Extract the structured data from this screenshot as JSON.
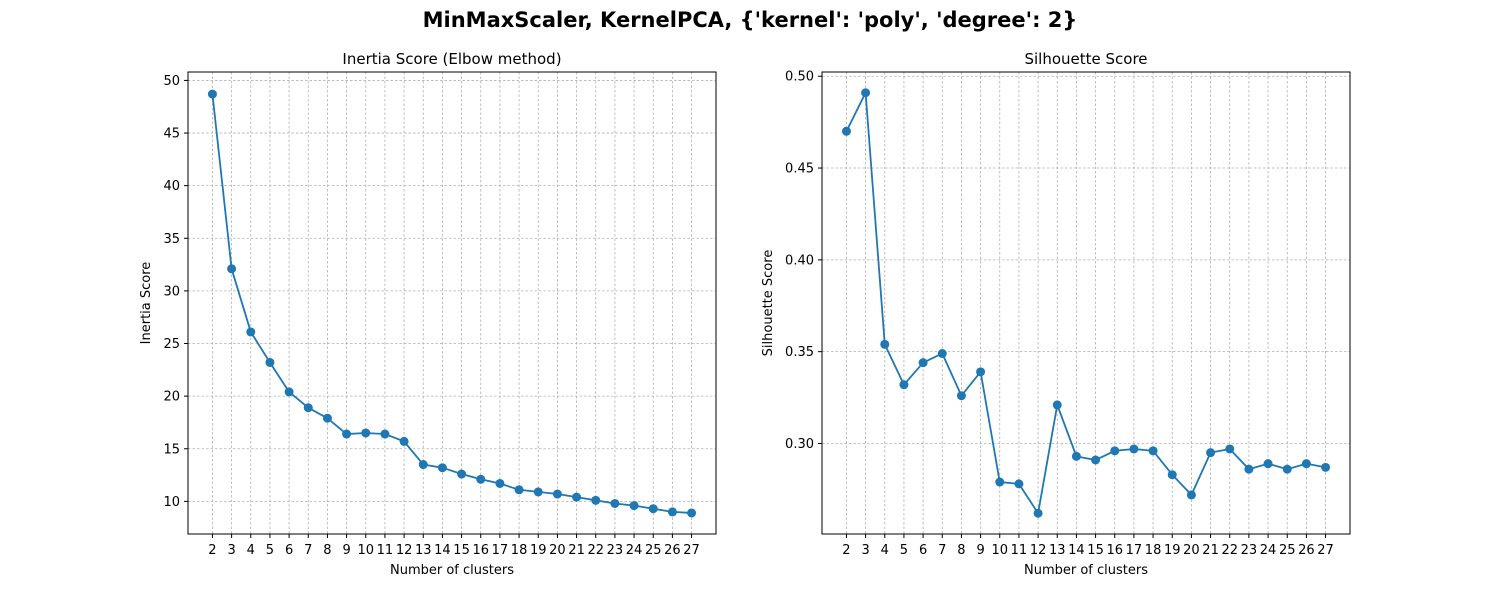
{
  "figure": {
    "suptitle": "MinMaxScaler, KernelPCA, {'kernel': 'poly', 'degree': 2}"
  },
  "style": {
    "line_color": "#1f77b4",
    "grid_color": "#b0b0b0"
  },
  "chart_data": [
    {
      "type": "line",
      "title": "Inertia Score (Elbow method)",
      "xlabel": "Number of clusters",
      "ylabel": "Inertia Score",
      "grid": true,
      "marker": "circle",
      "x": [
        2,
        3,
        4,
        5,
        6,
        7,
        8,
        9,
        10,
        11,
        12,
        13,
        14,
        15,
        16,
        17,
        18,
        19,
        20,
        21,
        22,
        23,
        24,
        25,
        26,
        27
      ],
      "y": [
        48.7,
        32.1,
        26.1,
        23.2,
        20.4,
        18.9,
        17.9,
        16.4,
        16.5,
        16.4,
        15.7,
        13.5,
        13.2,
        12.6,
        12.1,
        11.7,
        11.1,
        10.9,
        10.7,
        10.4,
        10.1,
        9.8,
        9.6,
        9.3,
        9.0,
        8.9
      ],
      "yticks": [
        10,
        15,
        20,
        25,
        30,
        35,
        40,
        45,
        50
      ],
      "xlim": [
        0.725,
        28.275
      ],
      "ylim": [
        6.9,
        50.8
      ]
    },
    {
      "type": "line",
      "title": "Silhouette Score",
      "xlabel": "Number of clusters",
      "ylabel": "Silhouette Score",
      "grid": true,
      "marker": "circle",
      "x": [
        2,
        3,
        4,
        5,
        6,
        7,
        8,
        9,
        10,
        11,
        12,
        13,
        14,
        15,
        16,
        17,
        18,
        19,
        20,
        21,
        22,
        23,
        24,
        25,
        26,
        27
      ],
      "y": [
        0.47,
        0.491,
        0.354,
        0.332,
        0.344,
        0.349,
        0.326,
        0.339,
        0.279,
        0.278,
        0.262,
        0.321,
        0.293,
        0.291,
        0.296,
        0.297,
        0.296,
        0.283,
        0.272,
        0.295,
        0.297,
        0.286,
        0.289,
        0.286,
        0.289,
        0.287
      ],
      "yticks": [
        0.3,
        0.35,
        0.4,
        0.45,
        0.5
      ],
      "ytick_labels": [
        "0.30",
        "0.35",
        "0.40",
        "0.45",
        "0.50"
      ],
      "xlim": [
        0.725,
        28.275
      ],
      "ylim": [
        0.2507,
        0.5023
      ]
    }
  ]
}
